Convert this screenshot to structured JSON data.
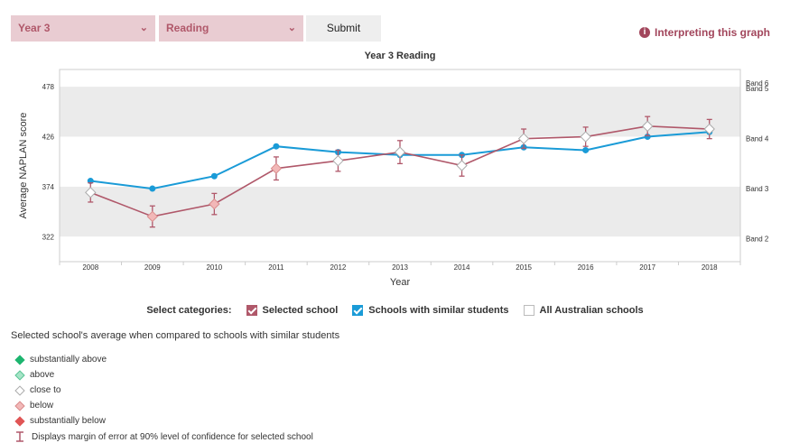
{
  "controls": {
    "year_select": "Year 3",
    "domain_select": "Reading",
    "submit_label": "Submit",
    "interpreting_label": "Interpreting this graph"
  },
  "colors": {
    "selected_school": "#b0586a",
    "similar_students": "#1a9bd7",
    "band_shade": "#ebebeb"
  },
  "chart_data": {
    "type": "line",
    "title": "Year 3 Reading",
    "xlabel": "Year",
    "ylabel": "Average NAPLAN score",
    "categories": [
      "2008",
      "2009",
      "2010",
      "2011",
      "2012",
      "2013",
      "2014",
      "2015",
      "2016",
      "2017",
      "2018"
    ],
    "yticks": [
      322,
      374,
      426,
      478
    ],
    "ylim": [
      296,
      496
    ],
    "bands": [
      {
        "label": "Band 6",
        "from": 478,
        "to": 496
      },
      {
        "label": "Band 5",
        "from": 426,
        "to": 478
      },
      {
        "label": "Band 4",
        "from": 374,
        "to": 426
      },
      {
        "label": "Band 3",
        "from": 322,
        "to": 374
      },
      {
        "label": "Band 2",
        "from": 296,
        "to": 322
      }
    ],
    "series": [
      {
        "name": "Selected school",
        "values": [
          368,
          343,
          356,
          393,
          401,
          410,
          396,
          424,
          426,
          437,
          434
        ],
        "error": [
          10,
          11,
          11,
          12,
          11,
          12,
          11,
          10,
          10,
          10,
          10
        ],
        "comparison": [
          "close to",
          "below",
          "below",
          "below",
          "close to",
          "close to",
          "close to",
          "close to",
          "close to",
          "close to",
          "close to"
        ]
      },
      {
        "name": "Schools with similar students",
        "values": [
          380,
          372,
          385,
          416,
          410,
          407,
          407,
          415,
          412,
          426,
          431
        ]
      }
    ]
  },
  "categories_control": {
    "label": "Select categories:",
    "options": [
      {
        "label": "Selected school",
        "checked": true
      },
      {
        "label": "Schools with similar students",
        "checked": true
      },
      {
        "label": "All Australian schools",
        "checked": false
      }
    ]
  },
  "legend": {
    "title": "Selected school's average when compared to schools with similar students",
    "items": [
      {
        "label": "substantially above",
        "color": "#1db56f"
      },
      {
        "label": "above",
        "color": "#a6e4c7"
      },
      {
        "label": "close to",
        "color": "#ffffff"
      },
      {
        "label": "below",
        "color": "#f2b8b8"
      },
      {
        "label": "substantially below",
        "color": "#e05555"
      }
    ],
    "error_note": "Displays margin of error at 90% level of confidence for selected school"
  }
}
